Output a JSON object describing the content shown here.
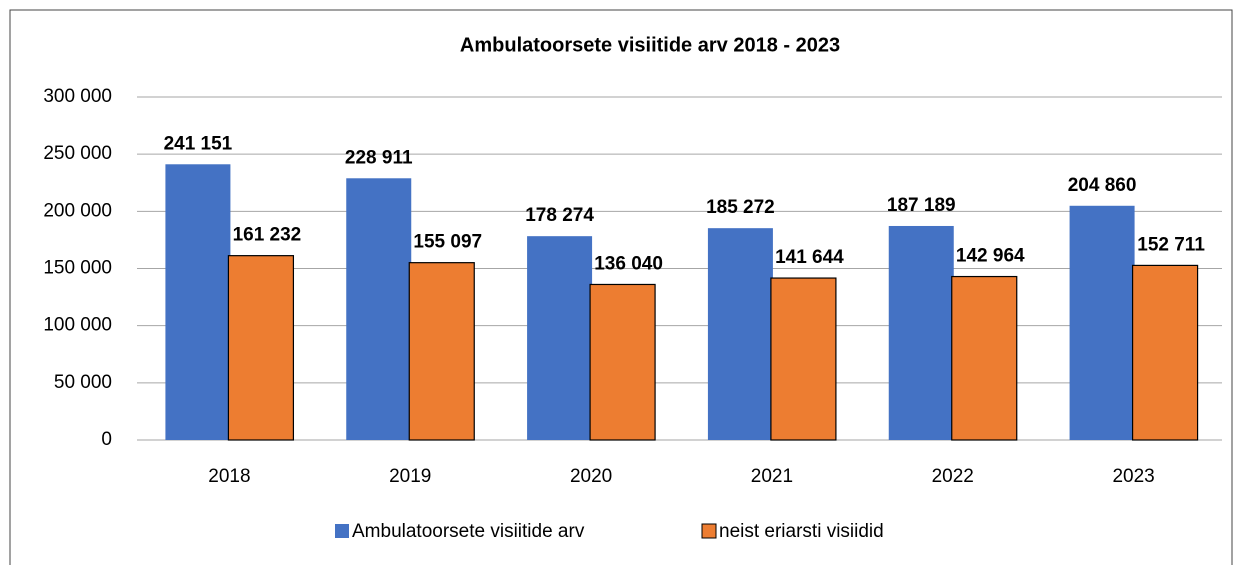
{
  "chart_data": {
    "type": "bar",
    "title": "Ambulatoorsete visiitide arv  2018 - 2023",
    "categories": [
      "2018",
      "2019",
      "2020",
      "2021",
      "2022",
      "2023"
    ],
    "series": [
      {
        "name": "Ambulatoorsete visiitide arv",
        "color": "#4472c4",
        "values": [
          241151,
          228911,
          178274,
          185272,
          187189,
          204860
        ],
        "value_labels": [
          "241 151",
          "228 911",
          "178 274",
          "185 272",
          "187 189",
          "204 860"
        ]
      },
      {
        "name": "neist eriarsti visiidid",
        "color": "#ed7d31",
        "values": [
          161232,
          155097,
          136040,
          141644,
          142964,
          152711
        ],
        "value_labels": [
          "161 232",
          "155 097",
          "136 040",
          "141 644",
          "142 964",
          "152 711"
        ]
      }
    ],
    "ylim": [
      0,
      300000
    ],
    "yticks": [
      0,
      {
        "value": 50000,
        "label": "50 000"
      },
      {
        "value": 100000,
        "label": "100 000"
      },
      {
        "value": 150000,
        "label": "150 000"
      },
      {
        "value": 200000,
        "label": "200 000"
      },
      {
        "value": 250000,
        "label": "250 000"
      },
      {
        "value": 300000,
        "label": "300 000"
      }
    ],
    "grid": true,
    "legend": "bottom"
  }
}
